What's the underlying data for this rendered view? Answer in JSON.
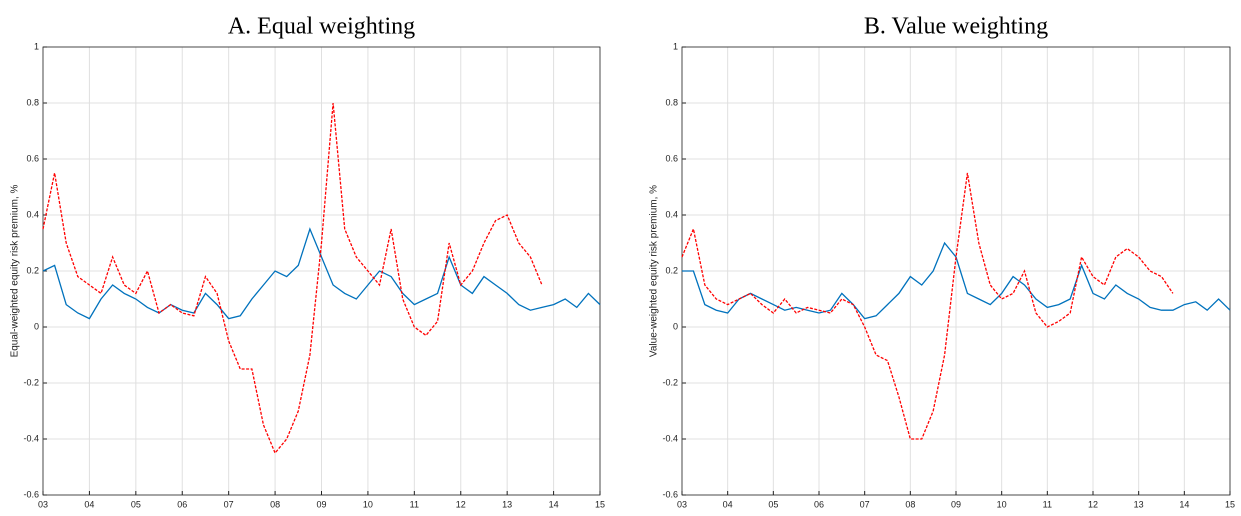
{
  "chart_data": [
    {
      "type": "line",
      "title": "A. Equal weighting",
      "y_label": "Equal-weighted equity risk premium, %",
      "x": [
        3,
        3.25,
        3.5,
        3.75,
        4,
        4.25,
        4.5,
        4.75,
        5,
        5.25,
        5.5,
        5.75,
        6,
        6.25,
        6.5,
        6.75,
        7,
        7.25,
        7.5,
        7.75,
        8,
        8.25,
        8.5,
        8.75,
        9,
        9.25,
        9.5,
        9.75,
        10,
        10.25,
        10.5,
        10.75,
        11,
        11.25,
        11.5,
        11.75,
        12,
        12.25,
        12.5,
        12.75,
        13,
        13.25,
        13.5,
        13.75,
        14,
        14.25,
        14.5,
        14.75,
        15
      ],
      "series": [
        {
          "color": "#0072bd",
          "linestyle": "solid",
          "values": [
            0.2,
            0.22,
            0.08,
            0.05,
            0.03,
            0.1,
            0.15,
            0.12,
            0.1,
            0.07,
            0.05,
            0.08,
            0.06,
            0.05,
            0.12,
            0.08,
            0.03,
            0.04,
            0.1,
            0.15,
            0.2,
            0.18,
            0.22,
            0.35,
            0.25,
            0.15,
            0.12,
            0.1,
            0.15,
            0.2,
            0.18,
            0.12,
            0.08,
            0.1,
            0.12,
            0.25,
            0.15,
            0.12,
            0.18,
            0.15,
            0.12,
            0.08,
            0.06,
            0.07,
            0.08,
            0.1,
            0.07,
            0.12,
            0.08
          ]
        },
        {
          "color": "#ff0000",
          "linestyle": "dashed",
          "values": [
            0.35,
            0.55,
            0.3,
            0.18,
            0.15,
            0.12,
            0.25,
            0.15,
            0.12,
            0.2,
            0.05,
            0.08,
            0.05,
            0.04,
            0.18,
            0.12,
            -0.05,
            -0.15,
            -0.15,
            -0.35,
            -0.45,
            -0.4,
            -0.3,
            -0.1,
            0.3,
            0.8,
            0.35,
            0.25,
            0.2,
            0.15,
            0.35,
            0.1,
            0.0,
            -0.03,
            0.02,
            0.3,
            0.15,
            0.2,
            0.3,
            0.38,
            0.4,
            0.3,
            0.25,
            0.15,
            null,
            null,
            null,
            null,
            null
          ]
        }
      ],
      "xlim": [
        3,
        15
      ],
      "xticks": [
        {
          "value": 3,
          "label": "03"
        },
        {
          "value": 4,
          "label": "04"
        },
        {
          "value": 5,
          "label": "05"
        },
        {
          "value": 6,
          "label": "06"
        },
        {
          "value": 7,
          "label": "07"
        },
        {
          "value": 8,
          "label": "08"
        },
        {
          "value": 9,
          "label": "09"
        },
        {
          "value": 10,
          "label": "10"
        },
        {
          "value": 11,
          "label": "11"
        },
        {
          "value": 12,
          "label": "12"
        },
        {
          "value": 13,
          "label": "13"
        },
        {
          "value": 14,
          "label": "14"
        },
        {
          "value": 15,
          "label": "15"
        }
      ],
      "ylim": [
        -0.6,
        1
      ],
      "yticks": [
        -0.6,
        -0.4,
        -0.2,
        0,
        0.2,
        0.4,
        0.6,
        0.8,
        1
      ],
      "grid": true
    },
    {
      "type": "line",
      "title": "B. Value weighting",
      "y_label": "Value-weighted equity risk premium, %",
      "x": [
        3,
        3.25,
        3.5,
        3.75,
        4,
        4.25,
        4.5,
        4.75,
        5,
        5.25,
        5.5,
        5.75,
        6,
        6.25,
        6.5,
        6.75,
        7,
        7.25,
        7.5,
        7.75,
        8,
        8.25,
        8.5,
        8.75,
        9,
        9.25,
        9.5,
        9.75,
        10,
        10.25,
        10.5,
        10.75,
        11,
        11.25,
        11.5,
        11.75,
        12,
        12.25,
        12.5,
        12.75,
        13,
        13.25,
        13.5,
        13.75,
        14,
        14.25,
        14.5,
        14.75,
        15
      ],
      "series": [
        {
          "color": "#0072bd",
          "linestyle": "solid",
          "values": [
            0.2,
            0.2,
            0.08,
            0.06,
            0.05,
            0.1,
            0.12,
            0.1,
            0.08,
            0.06,
            0.07,
            0.06,
            0.05,
            0.06,
            0.12,
            0.08,
            0.03,
            0.04,
            0.08,
            0.12,
            0.18,
            0.15,
            0.2,
            0.3,
            0.25,
            0.12,
            0.1,
            0.08,
            0.12,
            0.18,
            0.15,
            0.1,
            0.07,
            0.08,
            0.1,
            0.22,
            0.12,
            0.1,
            0.15,
            0.12,
            0.1,
            0.07,
            0.06,
            0.06,
            0.08,
            0.09,
            0.06,
            0.1,
            0.06
          ]
        },
        {
          "color": "#ff0000",
          "linestyle": "dashed",
          "values": [
            0.25,
            0.35,
            0.15,
            0.1,
            0.08,
            0.1,
            0.12,
            0.08,
            0.05,
            0.1,
            0.05,
            0.07,
            0.06,
            0.05,
            0.1,
            0.08,
            0.0,
            -0.1,
            -0.12,
            -0.25,
            -0.4,
            -0.4,
            -0.3,
            -0.1,
            0.25,
            0.55,
            0.3,
            0.15,
            0.1,
            0.12,
            0.2,
            0.05,
            0.0,
            0.02,
            0.05,
            0.25,
            0.18,
            0.15,
            0.25,
            0.28,
            0.25,
            0.2,
            0.18,
            0.12,
            null,
            null,
            null,
            null,
            null
          ]
        }
      ],
      "xlim": [
        3,
        15
      ],
      "xticks": [
        {
          "value": 3,
          "label": "03"
        },
        {
          "value": 4,
          "label": "04"
        },
        {
          "value": 5,
          "label": "05"
        },
        {
          "value": 6,
          "label": "06"
        },
        {
          "value": 7,
          "label": "07"
        },
        {
          "value": 8,
          "label": "08"
        },
        {
          "value": 9,
          "label": "09"
        },
        {
          "value": 10,
          "label": "10"
        },
        {
          "value": 11,
          "label": "11"
        },
        {
          "value": 12,
          "label": "12"
        },
        {
          "value": 13,
          "label": "13"
        },
        {
          "value": 14,
          "label": "14"
        },
        {
          "value": 15,
          "label": "15"
        }
      ],
      "ylim": [
        -0.6,
        1
      ],
      "yticks": [
        -0.6,
        -0.4,
        -0.2,
        0,
        0.2,
        0.4,
        0.6,
        0.8,
        1
      ],
      "grid": true
    }
  ]
}
